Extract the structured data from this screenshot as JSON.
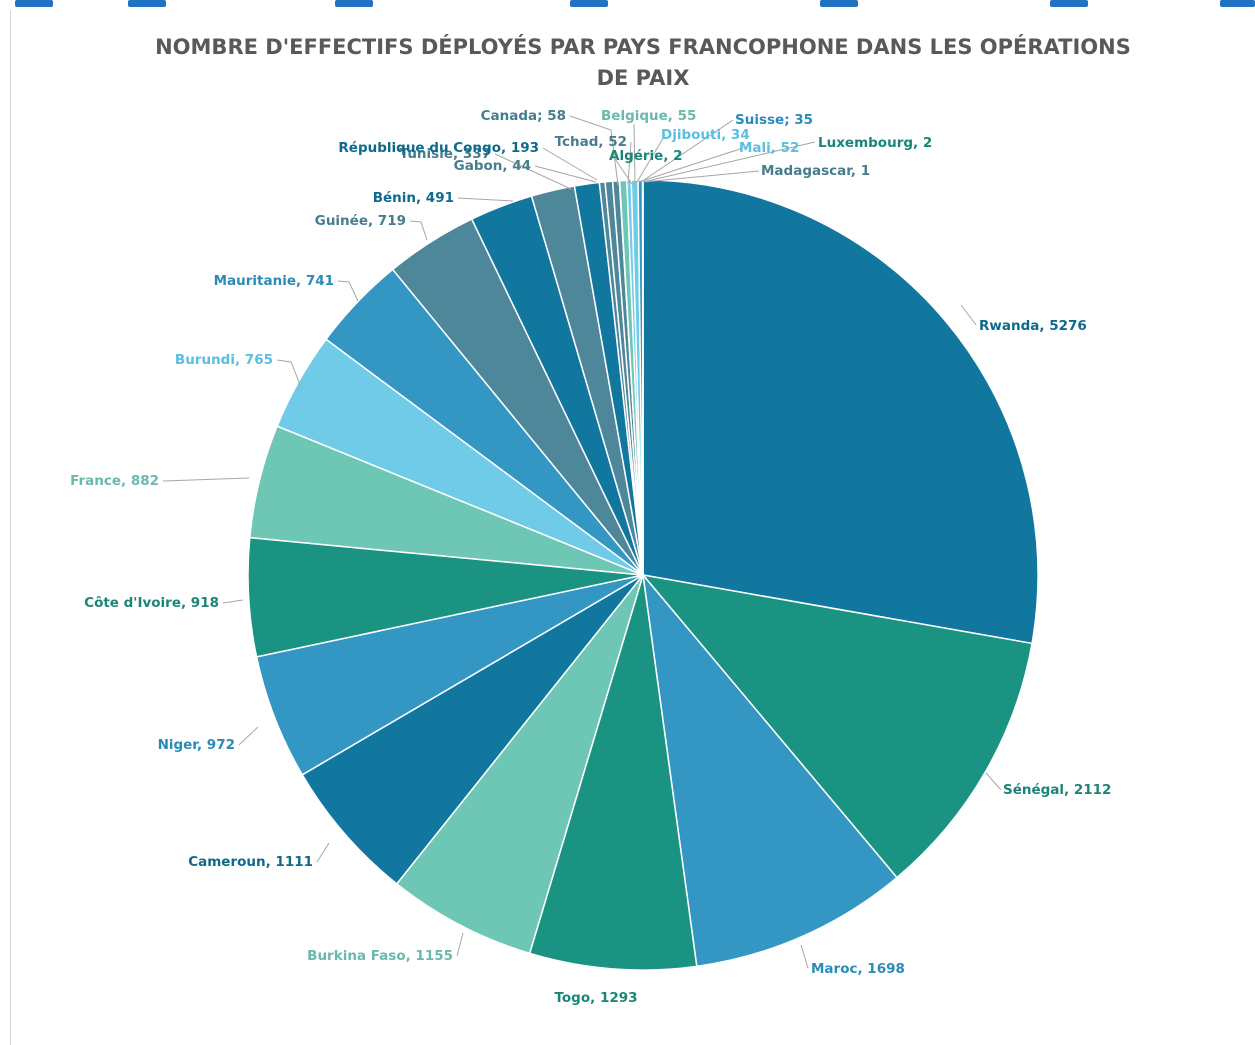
{
  "chart_data": {
    "type": "pie",
    "title_lines": [
      "NOMBRE D'EFFECTIFS DÉPLOYÉS PAR PAYS FRANCOPHONE DANS LES OPÉRATIONS",
      "DE PAIX"
    ],
    "slices": [
      {
        "name": "Rwanda",
        "value": 5276,
        "label": "Rwanda, 5276",
        "color": "#12779f",
        "label_color": "#0e6a8c"
      },
      {
        "name": "Sénégal",
        "value": 2112,
        "label": "Sénégal, 2112",
        "color": "#1b9383",
        "label_color": "#1b8677"
      },
      {
        "name": "Maroc",
        "value": 1698,
        "label": "Maroc, 1698",
        "color": "#3496c3",
        "label_color": "#2a8bb8"
      },
      {
        "name": "Togo",
        "value": 1293,
        "label": "Togo, 1293",
        "color": "#1b9383",
        "label_color": "#1b8677"
      },
      {
        "name": "Burkina Faso",
        "value": 1155,
        "label": "Burkina Faso, 1155",
        "color": "#6ec6b5",
        "label_color": "#6ab9ad"
      },
      {
        "name": "Cameroun",
        "value": 1111,
        "label": "Cameroun, 1111",
        "color": "#12779f",
        "label_color": "#0e6a8c"
      },
      {
        "name": "Niger",
        "value": 972,
        "label": "Niger, 972",
        "color": "#3496c3",
        "label_color": "#2a8bb8"
      },
      {
        "name": "Côte d'Ivoire",
        "value": 918,
        "label": "Côte d'Ivoire, 918",
        "color": "#1b9383",
        "label_color": "#1b8677"
      },
      {
        "name": "France",
        "value": 882,
        "label": "France, 882",
        "color": "#6ec6b5",
        "label_color": "#6ab9ad"
      },
      {
        "name": "Burundi",
        "value": 765,
        "label": "Burundi, 765",
        "color": "#6fcbe8",
        "label_color": "#5bbfe0"
      },
      {
        "name": "Mauritanie",
        "value": 741,
        "label": "Mauritanie, 741",
        "color": "#3496c3",
        "label_color": "#2a8bb8"
      },
      {
        "name": "Guinée",
        "value": 719,
        "label": "Guinée, 719",
        "color": "#4d8799",
        "label_color": "#457d8e"
      },
      {
        "name": "Bénin",
        "value": 491,
        "label": "Bénin, 491",
        "color": "#12779f",
        "label_color": "#0e6a8c"
      },
      {
        "name": "Tunisie",
        "value": 337,
        "label": "Tunisie, 337",
        "color": "#4d8799",
        "label_color": "#457d8e"
      },
      {
        "name": "République du Congo",
        "value": 193,
        "label": "République du Congo, 193",
        "color": "#12779f",
        "label_color": "#0e6a8c"
      },
      {
        "name": "Gabon",
        "value": 44,
        "label": "Gabon, 44",
        "color": "#4d8799",
        "label_color": "#457d8e"
      },
      {
        "name": "Canada",
        "value": 58,
        "label": "Canada; 58",
        "color": "#4d8799",
        "label_color": "#457d8e"
      },
      {
        "name": "Tchad",
        "value": 52,
        "label": "Tchad, 52",
        "color": "#4d8799",
        "label_color": "#457d8e"
      },
      {
        "name": "Algérie",
        "value": 2,
        "label": "Algérie, 2",
        "color": "#1b9383",
        "label_color": "#1b8677"
      },
      {
        "name": "Belgique",
        "value": 55,
        "label": "Belgique, 55",
        "color": "#6ec6b5",
        "label_color": "#6ab9ad"
      },
      {
        "name": "Djibouti",
        "value": 34,
        "label": "Djibouti, 34",
        "color": "#6fcbe8",
        "label_color": "#5bbfe0"
      },
      {
        "name": "Mali",
        "value": 52,
        "label": "Mali, 52",
        "color": "#6fcbe8",
        "label_color": "#5bbfe0"
      },
      {
        "name": "Suisse",
        "value": 35,
        "label": "Suisse; 35",
        "color": "#3496c3",
        "label_color": "#2a8bb8"
      },
      {
        "name": "Luxembourg",
        "value": 2,
        "label": "Luxembourg, 2",
        "color": "#1b9383",
        "label_color": "#1b8677"
      },
      {
        "name": "Madagascar",
        "value": 1,
        "label": "Madagascar, 1",
        "color": "#12779f",
        "label_color": "#457d8e"
      }
    ],
    "legend": "none",
    "data_labels": "outside-with-leader-lines"
  }
}
